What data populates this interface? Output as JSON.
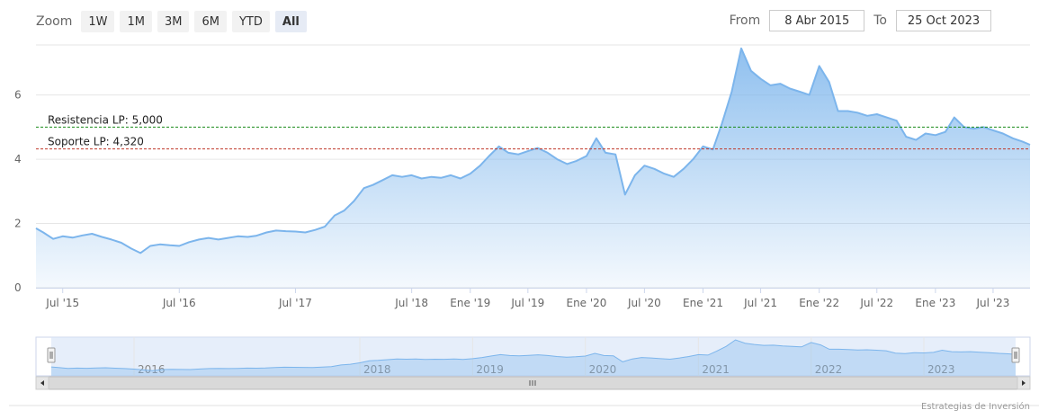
{
  "zoom": {
    "label": "Zoom",
    "buttons": [
      "1W",
      "1M",
      "3M",
      "6M",
      "YTD",
      "All"
    ],
    "active": "All"
  },
  "range": {
    "from_label": "From",
    "from_value": "8 Abr 2015",
    "to_label": "To",
    "to_value": "25 Oct 2023"
  },
  "credit": "Estrategias de Inversión",
  "colors": {
    "line": "#7cb5ec",
    "resistance": "#1a8c1a",
    "support": "#c0392b",
    "navigator_fill": "#d5e3f6"
  },
  "chart_data": {
    "type": "area",
    "x_range": [
      "2015-04-08",
      "2023-10-25"
    ],
    "ylim": [
      0,
      7.5
    ],
    "yticks": [
      0,
      2,
      4,
      6
    ],
    "xticks": [
      {
        "date": "2015-07-01",
        "label": "Jul '15"
      },
      {
        "date": "2016-07-01",
        "label": "Jul '16"
      },
      {
        "date": "2017-07-01",
        "label": "Jul '17"
      },
      {
        "date": "2018-07-01",
        "label": "Jul '18"
      },
      {
        "date": "2019-01-01",
        "label": "Ene '19"
      },
      {
        "date": "2019-07-01",
        "label": "Jul '19"
      },
      {
        "date": "2020-01-01",
        "label": "Ene '20"
      },
      {
        "date": "2020-07-01",
        "label": "Jul '20"
      },
      {
        "date": "2021-01-01",
        "label": "Ene '21"
      },
      {
        "date": "2021-07-01",
        "label": "Jul '21"
      },
      {
        "date": "2022-01-01",
        "label": "Ene '22"
      },
      {
        "date": "2022-07-01",
        "label": "Jul '22"
      },
      {
        "date": "2023-01-01",
        "label": "Ene '23"
      },
      {
        "date": "2023-07-01",
        "label": "Jul '23"
      }
    ],
    "plot_lines": [
      {
        "label": "Resistencia LP: 5,000",
        "value": 5.0,
        "style": "dashed",
        "color": "#1a8c1a"
      },
      {
        "label": "Soporte LP: 4,320",
        "value": 4.32,
        "style": "dashed",
        "color": "#c0392b"
      }
    ],
    "navigator_labels": [
      {
        "date": "2016-01-01",
        "label": "2016"
      },
      {
        "date": "2018-01-01",
        "label": "2018"
      },
      {
        "date": "2019-01-01",
        "label": "2019"
      },
      {
        "date": "2020-01-01",
        "label": "2020"
      },
      {
        "date": "2021-01-01",
        "label": "2021"
      },
      {
        "date": "2022-01-01",
        "label": "2022"
      },
      {
        "date": "2023-01-01",
        "label": "2023"
      }
    ],
    "series": [
      {
        "points": [
          [
            "2015-04-08",
            1.85
          ],
          [
            "2015-05-01",
            1.72
          ],
          [
            "2015-06-01",
            1.52
          ],
          [
            "2015-07-01",
            1.6
          ],
          [
            "2015-08-01",
            1.56
          ],
          [
            "2015-09-01",
            1.63
          ],
          [
            "2015-10-01",
            1.68
          ],
          [
            "2015-11-01",
            1.58
          ],
          [
            "2015-12-01",
            1.5
          ],
          [
            "2016-01-01",
            1.4
          ],
          [
            "2016-02-01",
            1.22
          ],
          [
            "2016-03-01",
            1.08
          ],
          [
            "2016-04-01",
            1.3
          ],
          [
            "2016-05-01",
            1.35
          ],
          [
            "2016-06-01",
            1.32
          ],
          [
            "2016-07-01",
            1.3
          ],
          [
            "2016-08-01",
            1.42
          ],
          [
            "2016-09-01",
            1.5
          ],
          [
            "2016-10-01",
            1.55
          ],
          [
            "2016-11-01",
            1.5
          ],
          [
            "2016-12-01",
            1.55
          ],
          [
            "2017-01-01",
            1.6
          ],
          [
            "2017-02-01",
            1.58
          ],
          [
            "2017-03-01",
            1.62
          ],
          [
            "2017-04-01",
            1.72
          ],
          [
            "2017-05-01",
            1.78
          ],
          [
            "2017-06-01",
            1.76
          ],
          [
            "2017-07-01",
            1.75
          ],
          [
            "2017-08-01",
            1.72
          ],
          [
            "2017-09-01",
            1.8
          ],
          [
            "2017-10-01",
            1.9
          ],
          [
            "2017-11-01",
            2.25
          ],
          [
            "2017-12-01",
            2.4
          ],
          [
            "2018-01-01",
            2.7
          ],
          [
            "2018-02-01",
            3.1
          ],
          [
            "2018-03-01",
            3.2
          ],
          [
            "2018-04-01",
            3.35
          ],
          [
            "2018-05-01",
            3.5
          ],
          [
            "2018-06-01",
            3.45
          ],
          [
            "2018-07-01",
            3.5
          ],
          [
            "2018-08-01",
            3.4
          ],
          [
            "2018-09-01",
            3.45
          ],
          [
            "2018-10-01",
            3.42
          ],
          [
            "2018-11-01",
            3.5
          ],
          [
            "2018-12-01",
            3.4
          ],
          [
            "2019-01-01",
            3.55
          ],
          [
            "2019-02-01",
            3.8
          ],
          [
            "2019-03-01",
            4.1
          ],
          [
            "2019-04-01",
            4.4
          ],
          [
            "2019-05-01",
            4.2
          ],
          [
            "2019-06-01",
            4.15
          ],
          [
            "2019-07-01",
            4.25
          ],
          [
            "2019-08-01",
            4.35
          ],
          [
            "2019-09-01",
            4.2
          ],
          [
            "2019-10-01",
            4.0
          ],
          [
            "2019-11-01",
            3.85
          ],
          [
            "2019-12-01",
            3.95
          ],
          [
            "2020-01-01",
            4.1
          ],
          [
            "2020-02-01",
            4.65
          ],
          [
            "2020-03-01",
            4.2
          ],
          [
            "2020-04-01",
            4.15
          ],
          [
            "2020-05-01",
            2.9
          ],
          [
            "2020-06-01",
            3.5
          ],
          [
            "2020-07-01",
            3.8
          ],
          [
            "2020-08-01",
            3.7
          ],
          [
            "2020-09-01",
            3.55
          ],
          [
            "2020-10-01",
            3.45
          ],
          [
            "2020-11-01",
            3.7
          ],
          [
            "2020-12-01",
            4.0
          ],
          [
            "2021-01-01",
            4.4
          ],
          [
            "2021-02-01",
            4.3
          ],
          [
            "2021-03-01",
            5.1
          ],
          [
            "2021-04-01",
            6.1
          ],
          [
            "2021-05-01",
            7.45
          ],
          [
            "2021-06-01",
            6.75
          ],
          [
            "2021-07-01",
            6.5
          ],
          [
            "2021-08-01",
            6.3
          ],
          [
            "2021-09-01",
            6.35
          ],
          [
            "2021-10-01",
            6.2
          ],
          [
            "2021-11-01",
            6.1
          ],
          [
            "2021-12-01",
            6.0
          ],
          [
            "2022-01-01",
            6.9
          ],
          [
            "2022-02-01",
            6.4
          ],
          [
            "2022-03-01",
            5.5
          ],
          [
            "2022-04-01",
            5.5
          ],
          [
            "2022-05-01",
            5.45
          ],
          [
            "2022-06-01",
            5.35
          ],
          [
            "2022-07-01",
            5.4
          ],
          [
            "2022-08-01",
            5.3
          ],
          [
            "2022-09-01",
            5.2
          ],
          [
            "2022-10-01",
            4.7
          ],
          [
            "2022-11-01",
            4.6
          ],
          [
            "2022-12-01",
            4.8
          ],
          [
            "2023-01-01",
            4.75
          ],
          [
            "2023-02-01",
            4.85
          ],
          [
            "2023-03-01",
            5.3
          ],
          [
            "2023-04-01",
            5.0
          ],
          [
            "2023-05-01",
            4.95
          ],
          [
            "2023-06-01",
            5.0
          ],
          [
            "2023-07-01",
            4.9
          ],
          [
            "2023-08-01",
            4.8
          ],
          [
            "2023-09-01",
            4.65
          ],
          [
            "2023-10-01",
            4.55
          ],
          [
            "2023-10-25",
            4.45
          ]
        ]
      }
    ]
  }
}
